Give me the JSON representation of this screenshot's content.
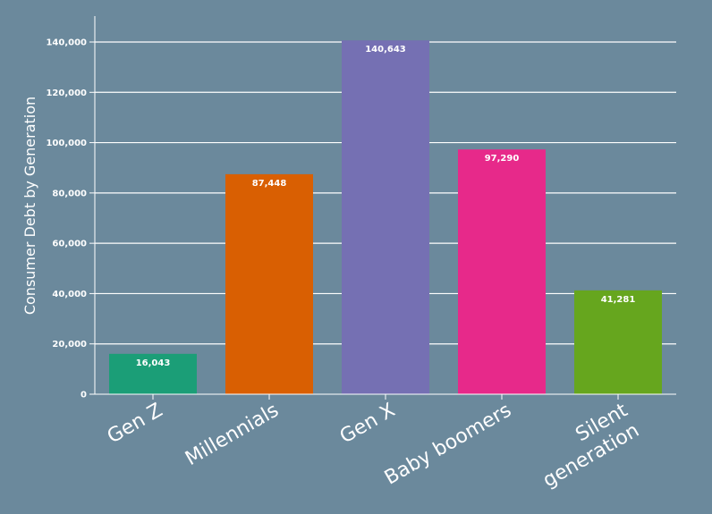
{
  "chart_data": {
    "type": "bar",
    "categories": [
      "Gen Z",
      "Millennials",
      "Gen X",
      "Baby boomers",
      "Silent generation"
    ],
    "category_lines": [
      [
        "Gen Z"
      ],
      [
        "Millennials"
      ],
      [
        "Gen X"
      ],
      [
        "Baby boomers"
      ],
      [
        "Silent",
        "generation"
      ]
    ],
    "values": [
      16043,
      87448,
      140643,
      97290,
      41281
    ],
    "value_labels": [
      "16,043",
      "87,448",
      "140,643",
      "97,290",
      "41,281"
    ],
    "colors": [
      "#1b9e77",
      "#d95f02",
      "#7570b3",
      "#e7298a",
      "#66a61e"
    ],
    "title": "",
    "xlabel": "",
    "ylabel": "Consumer Debt by Generation",
    "ylim": [
      0,
      150000
    ],
    "yticks": [
      0,
      20000,
      40000,
      60000,
      80000,
      100000,
      120000,
      140000
    ],
    "ytick_labels": [
      "0",
      "20,000",
      "40,000",
      "60,000",
      "80,000",
      "100,000",
      "120,000",
      "140,000"
    ],
    "grid": true,
    "background": "#6b899c"
  }
}
